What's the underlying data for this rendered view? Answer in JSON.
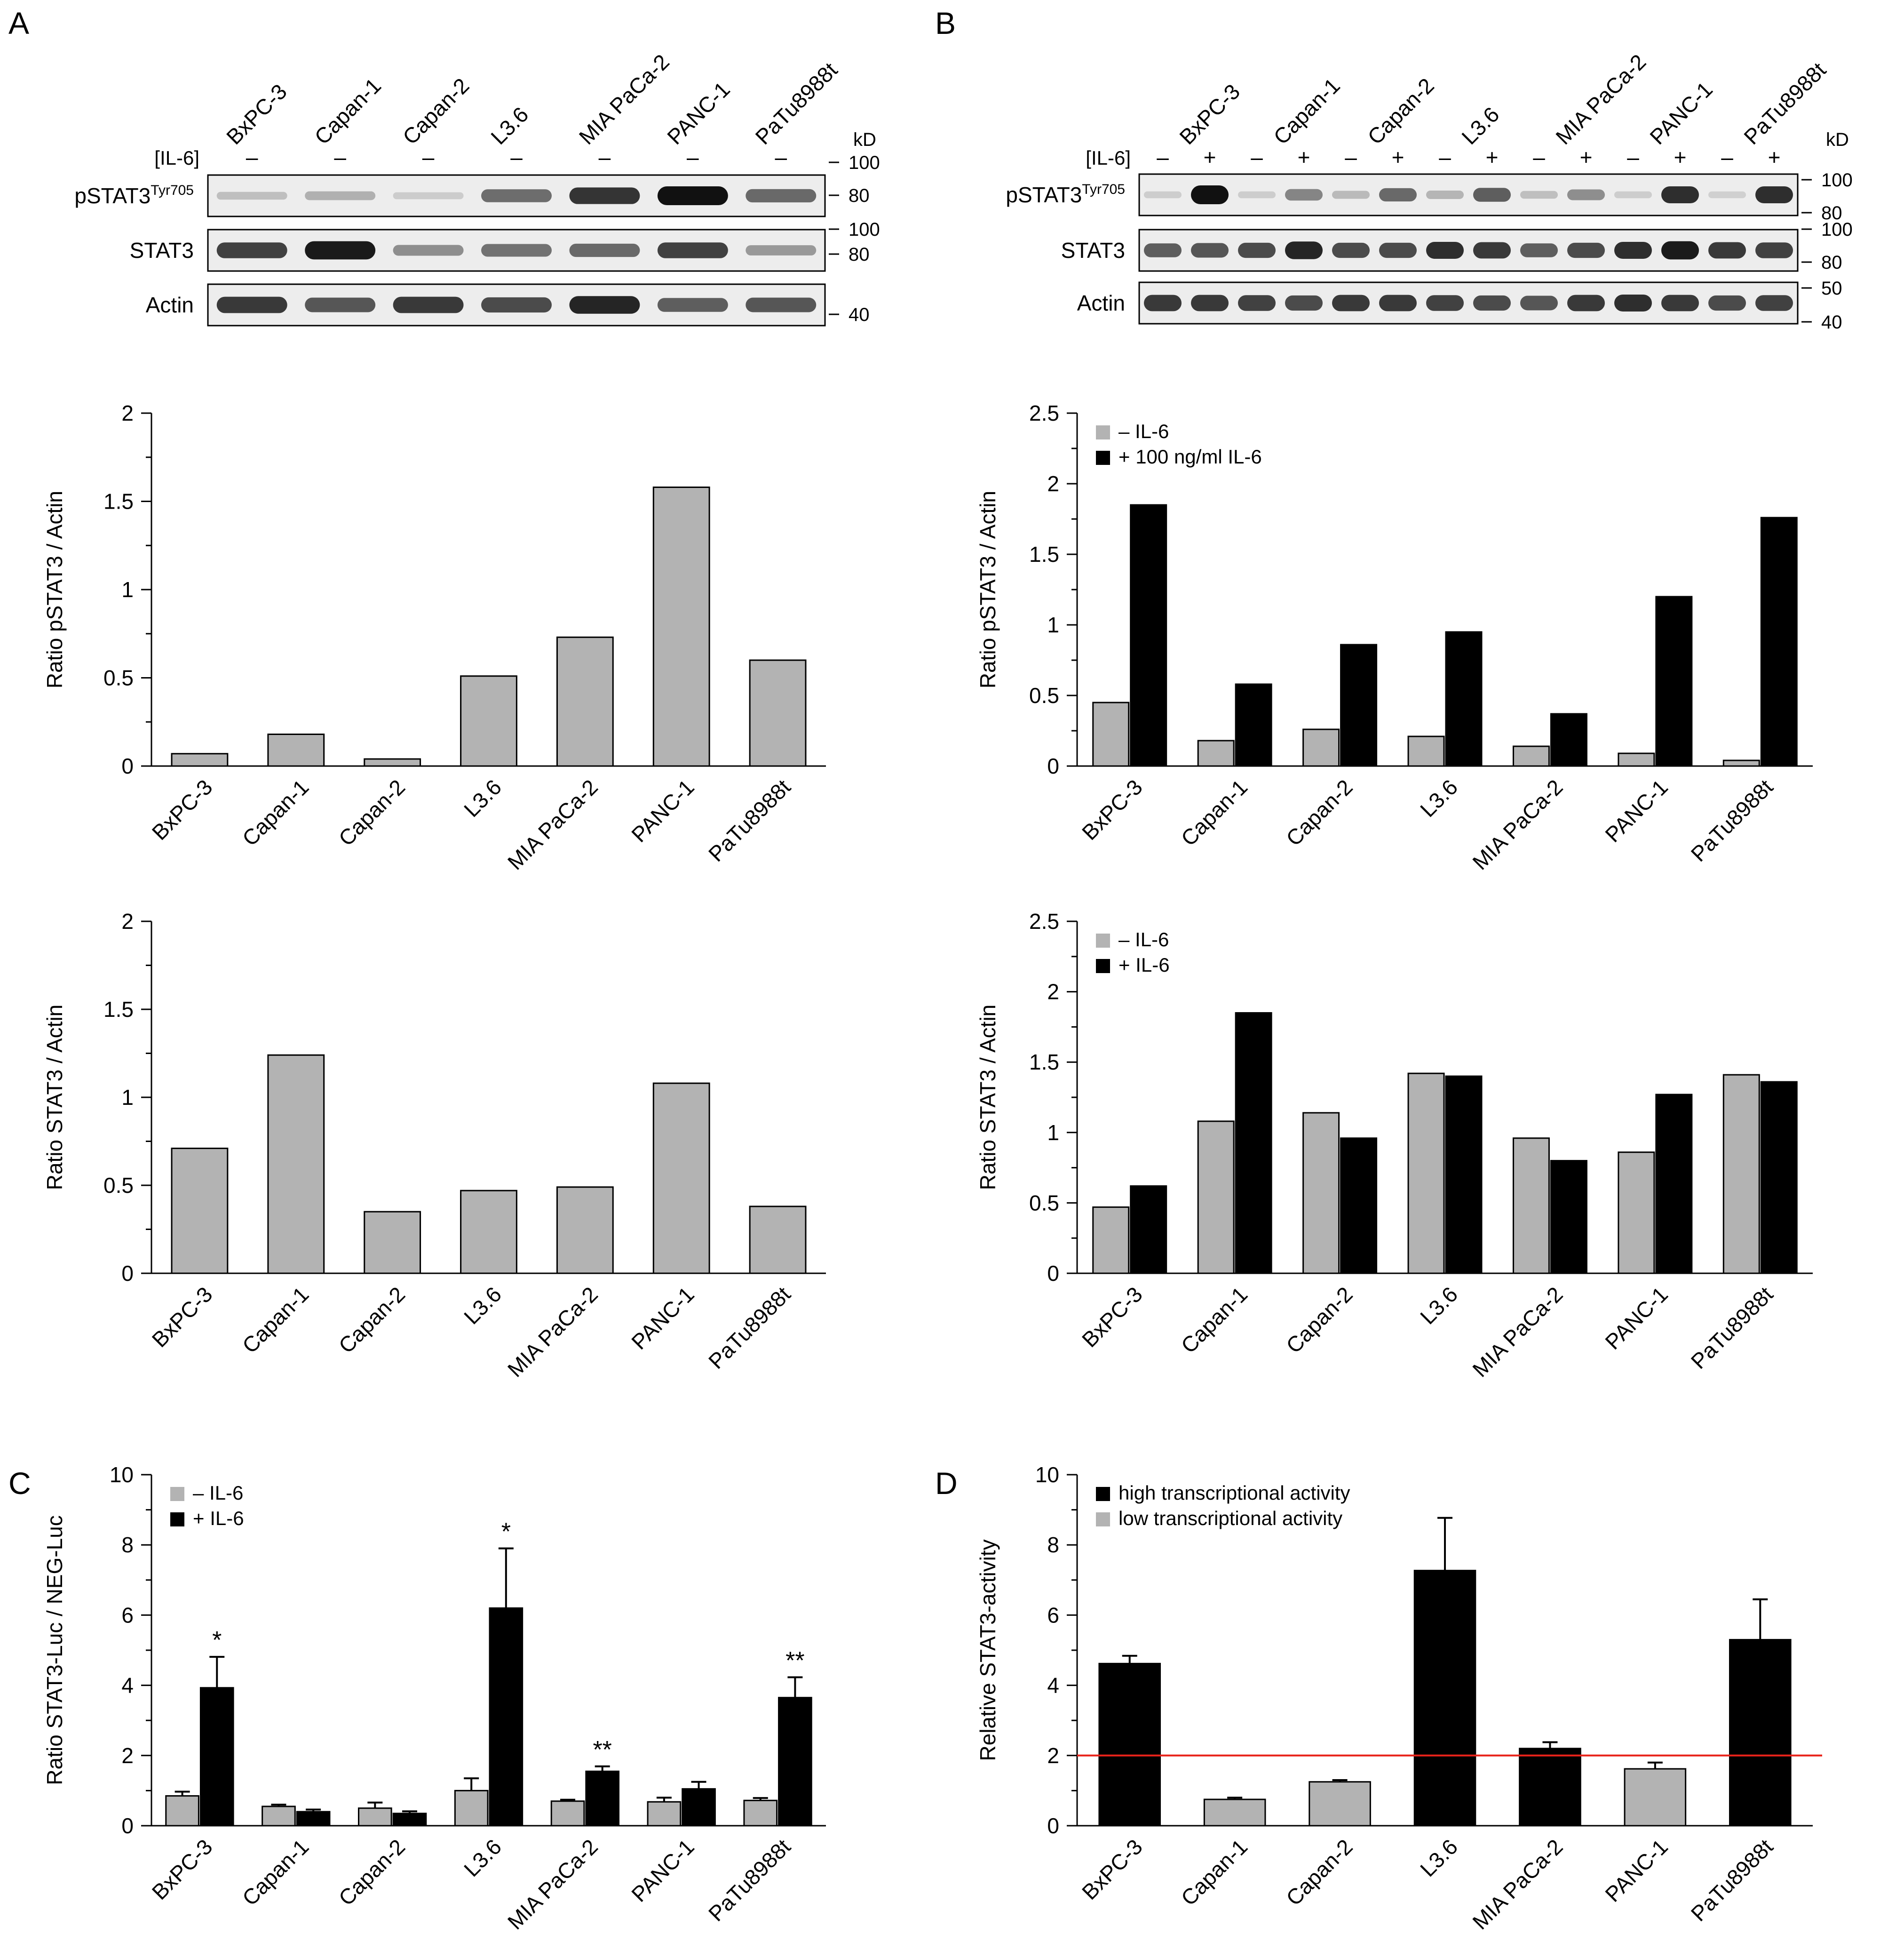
{
  "panel_letters": [
    "A",
    "B",
    "C",
    "D"
  ],
  "cell_lines": [
    "BxPC-3",
    "Capan-1",
    "Capan-2",
    "L3.6",
    "MIA PaCa-2",
    "PANC-1",
    "PaTu8988t"
  ],
  "colors": {
    "gray_bar": "#b3b3b3",
    "black_bar": "#000000",
    "threshold": "#e8231a",
    "blot_bg": "#ededed",
    "band": "#111111"
  },
  "blots": {
    "A": {
      "treatment_label": "[IL-6]",
      "treatment_marks": [
        "–",
        "–",
        "–",
        "–",
        "–",
        "–",
        "–"
      ],
      "kd_label": "kD",
      "rows": [
        {
          "label": "pSTAT3",
          "label_sup": "Tyr705",
          "markers": [
            "100",
            "80"
          ],
          "band_intensity": [
            0.1,
            0.18,
            0.03,
            0.52,
            0.82,
            1.0,
            0.55
          ]
        },
        {
          "label": "STAT3",
          "markers": [
            "100",
            "80"
          ],
          "band_intensity": [
            0.75,
            0.95,
            0.35,
            0.5,
            0.55,
            0.75,
            0.3
          ]
        },
        {
          "label": "Actin",
          "markers": [
            "40"
          ],
          "band_intensity": [
            0.8,
            0.65,
            0.8,
            0.7,
            0.9,
            0.6,
            0.65
          ]
        }
      ]
    },
    "B": {
      "treatment_label": "[IL-6]",
      "treatment_marks": [
        "–",
        "+",
        "–",
        "+",
        "–",
        "+",
        "–",
        "+",
        "–",
        "+",
        "–",
        "+",
        "–",
        "+"
      ],
      "kd_label": "kD",
      "rows": [
        {
          "label": "pSTAT3",
          "label_sup": "Tyr705",
          "markers": [
            "100",
            "80"
          ],
          "band_intensity": [
            0.02,
            1.0,
            0.02,
            0.4,
            0.12,
            0.55,
            0.15,
            0.6,
            0.1,
            0.35,
            0.02,
            0.85,
            0.01,
            0.85
          ]
        },
        {
          "label": "STAT3",
          "markers": [
            "100",
            "80"
          ],
          "band_intensity": [
            0.6,
            0.65,
            0.7,
            0.9,
            0.7,
            0.7,
            0.85,
            0.8,
            0.6,
            0.7,
            0.85,
            0.95,
            0.8,
            0.75
          ]
        },
        {
          "label": "Actin",
          "markers": [
            "50",
            "40"
          ],
          "band_intensity": [
            0.8,
            0.8,
            0.75,
            0.7,
            0.8,
            0.8,
            0.75,
            0.7,
            0.65,
            0.8,
            0.85,
            0.8,
            0.7,
            0.75
          ]
        }
      ]
    }
  },
  "chart_data": [
    {
      "id": "A1",
      "type": "bar",
      "categories": [
        "BxPC-3",
        "Capan-1",
        "Capan-2",
        "L3.6",
        "MIA PaCa-2",
        "PANC-1",
        "PaTu8988t"
      ],
      "series": [
        {
          "name": "pSTAT3 / Actin",
          "color": "gray",
          "values": [
            0.07,
            0.18,
            0.04,
            0.51,
            0.73,
            1.58,
            0.6
          ]
        }
      ],
      "ylabel": "Ratio pSTAT3 / Actin",
      "ylim": [
        0,
        2
      ],
      "yticks": [
        {
          "v": 0,
          "t": "0"
        },
        {
          "v": 0.5,
          "t": "0.5"
        },
        {
          "v": 1,
          "t": "1"
        },
        {
          "v": 1.5,
          "t": "1.5"
        },
        {
          "v": 2,
          "t": "2"
        }
      ]
    },
    {
      "id": "A2",
      "type": "bar",
      "categories": [
        "BxPC-3",
        "Capan-1",
        "Capan-2",
        "L3.6",
        "MIA PaCa-2",
        "PANC-1",
        "PaTu8988t"
      ],
      "series": [
        {
          "name": "STAT3 / Actin",
          "color": "gray",
          "values": [
            0.71,
            1.24,
            0.35,
            0.47,
            0.49,
            1.08,
            0.38
          ]
        }
      ],
      "ylabel": "Ratio STAT3 / Actin",
      "ylim": [
        0,
        2
      ],
      "yticks": [
        {
          "v": 0,
          "t": "0"
        },
        {
          "v": 0.5,
          "t": "0.5"
        },
        {
          "v": 1,
          "t": "1"
        },
        {
          "v": 1.5,
          "t": "1.5"
        },
        {
          "v": 2,
          "t": "2"
        }
      ]
    },
    {
      "id": "B1",
      "type": "bar",
      "categories": [
        "BxPC-3",
        "Capan-1",
        "Capan-2",
        "L3.6",
        "MIA PaCa-2",
        "PANC-1",
        "PaTu8988t"
      ],
      "series": [
        {
          "name": "– IL-6",
          "color": "gray",
          "values": [
            0.45,
            0.18,
            0.26,
            0.21,
            0.14,
            0.09,
            0.04
          ]
        },
        {
          "name": "+ 100 ng/ml IL-6",
          "color": "black",
          "values": [
            1.85,
            0.58,
            0.86,
            0.95,
            0.37,
            1.2,
            1.76
          ]
        }
      ],
      "legend": [
        "– IL-6",
        "+ 100 ng/ml IL-6"
      ],
      "ylabel": "Ratio pSTAT3 / Actin",
      "ylim": [
        0,
        2.5
      ],
      "yticks": [
        {
          "v": 0,
          "t": "0"
        },
        {
          "v": 0.5,
          "t": "0.5"
        },
        {
          "v": 1,
          "t": "1"
        },
        {
          "v": 1.5,
          "t": "1.5"
        },
        {
          "v": 2,
          "t": "2"
        },
        {
          "v": 2.5,
          "t": "2.5"
        }
      ]
    },
    {
      "id": "B2",
      "type": "bar",
      "categories": [
        "BxPC-3",
        "Capan-1",
        "Capan-2",
        "L3.6",
        "MIA PaCa-2",
        "PANC-1",
        "PaTu8988t"
      ],
      "series": [
        {
          "name": "– IL-6",
          "color": "gray",
          "values": [
            0.47,
            1.08,
            1.14,
            1.42,
            0.96,
            0.86,
            1.41
          ]
        },
        {
          "name": "+ IL-6",
          "color": "black",
          "values": [
            0.62,
            1.85,
            0.96,
            1.4,
            0.8,
            1.27,
            1.36
          ]
        }
      ],
      "legend": [
        "– IL-6",
        "+ IL-6"
      ],
      "ylabel": "Ratio STAT3 / Actin",
      "ylim": [
        0,
        2.5
      ],
      "yticks": [
        {
          "v": 0,
          "t": "0"
        },
        {
          "v": 0.5,
          "t": "0.5"
        },
        {
          "v": 1,
          "t": "1"
        },
        {
          "v": 1.5,
          "t": "1.5"
        },
        {
          "v": 2,
          "t": "2"
        },
        {
          "v": 2.5,
          "t": "2.5"
        }
      ]
    },
    {
      "id": "C",
      "type": "bar",
      "categories": [
        "BxPC-3",
        "Capan-1",
        "Capan-2",
        "L3.6",
        "MIA PaCa-2",
        "PANC-1",
        "PaTu8988t"
      ],
      "series": [
        {
          "name": "– IL-6",
          "color": "gray",
          "values": [
            0.85,
            0.55,
            0.5,
            1.0,
            0.7,
            0.68,
            0.72
          ],
          "errors": [
            0.12,
            0.05,
            0.16,
            0.35,
            0.04,
            0.12,
            0.07
          ]
        },
        {
          "name": "+ IL-6",
          "color": "black",
          "values": [
            3.93,
            0.4,
            0.35,
            6.2,
            1.55,
            1.05,
            3.65
          ],
          "errors": [
            0.88,
            0.06,
            0.06,
            1.7,
            0.14,
            0.2,
            0.58
          ]
        }
      ],
      "significance": [
        "*",
        "",
        "",
        "*",
        "**",
        "",
        "**"
      ],
      "legend": [
        "– IL-6",
        "+ IL-6"
      ],
      "ylabel": "Ratio STAT3-Luc / NEG-Luc",
      "ylim": [
        0,
        10
      ],
      "yticks": [
        {
          "v": 0,
          "t": "0"
        },
        {
          "v": 2,
          "t": "2"
        },
        {
          "v": 4,
          "t": "4"
        },
        {
          "v": 6,
          "t": "6"
        },
        {
          "v": 8,
          "t": "8"
        },
        {
          "v": 10,
          "t": "10"
        }
      ]
    },
    {
      "id": "D",
      "type": "bar",
      "categories": [
        "BxPC-3",
        "Capan-1",
        "Capan-2",
        "L3.6",
        "MIA PaCa-2",
        "PANC-1",
        "PaTu8988t"
      ],
      "series": [
        {
          "name": "Relative STAT3-activity",
          "values": [
            4.62,
            0.75,
            1.25,
            7.27,
            2.2,
            1.62,
            5.3
          ],
          "errors": [
            0.22,
            0.05,
            0.05,
            1.5,
            0.18,
            0.18,
            1.15
          ],
          "colors": [
            "black",
            "gray",
            "gray",
            "black",
            "black",
            "gray",
            "black"
          ]
        }
      ],
      "threshold": 2,
      "legend": [
        "high transcriptional activity",
        "low transcriptional activity"
      ],
      "ylabel": "Relative STAT3-activity",
      "ylim": [
        0,
        10
      ],
      "yticks": [
        {
          "v": 0,
          "t": "0"
        },
        {
          "v": 2,
          "t": "2"
        },
        {
          "v": 4,
          "t": "4"
        },
        {
          "v": 6,
          "t": "6"
        },
        {
          "v": 8,
          "t": "8"
        },
        {
          "v": 10,
          "t": "10"
        }
      ]
    }
  ]
}
